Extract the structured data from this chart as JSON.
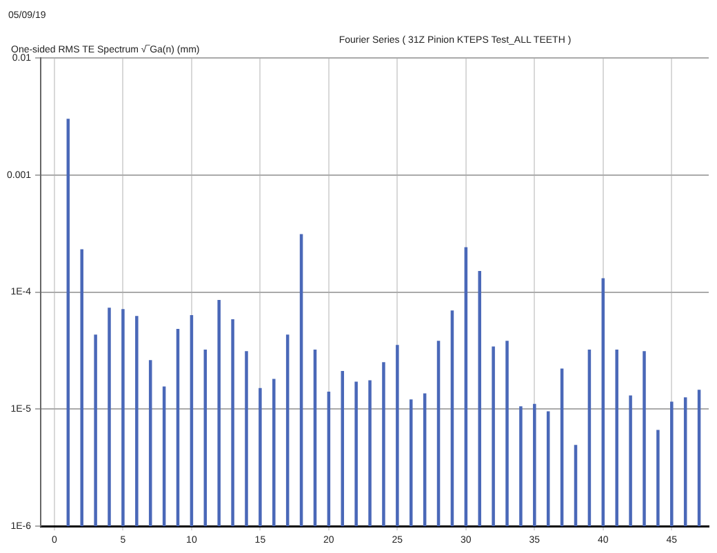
{
  "chart_data": {
    "type": "bar",
    "title": "Fourier Series ( 31Z Pinion KTEPS Test_ALL TEETH )",
    "ylabel": "One-sided RMS TE Spectrum √‾Ga(n) (mm)",
    "annotations": [
      "05/09/19"
    ],
    "x": [
      1,
      2,
      3,
      4,
      5,
      6,
      7,
      8,
      9,
      10,
      11,
      12,
      13,
      14,
      15,
      16,
      17,
      18,
      19,
      20,
      21,
      22,
      23,
      24,
      25,
      26,
      27,
      28,
      29,
      30,
      31,
      32,
      33,
      34,
      35,
      36,
      37,
      38,
      39,
      40,
      41,
      42,
      43,
      44,
      45,
      46,
      47
    ],
    "values": [
      0.003,
      0.00023,
      4.3e-05,
      7.3e-05,
      7.1e-05,
      6.2e-05,
      2.6e-05,
      1.55e-05,
      4.8e-05,
      6.3e-05,
      3.2e-05,
      8.5e-05,
      5.8e-05,
      3.1e-05,
      1.5e-05,
      1.8e-05,
      4.3e-05,
      0.00031,
      3.2e-05,
      1.4e-05,
      2.1e-05,
      1.7e-05,
      1.75e-05,
      2.5e-05,
      3.5e-05,
      1.2e-05,
      1.35e-05,
      3.8e-05,
      6.9e-05,
      0.00024,
      0.00015,
      3.4e-05,
      3.8e-05,
      1.05e-05,
      1.1e-05,
      9.5e-06,
      2.2e-05,
      4.9e-06,
      3.2e-05,
      0.00013,
      3.2e-05,
      1.3e-05,
      3.1e-05,
      6.6e-06,
      1.15e-05,
      1.25e-05,
      1.45e-05
    ],
    "color": "#4a68b8",
    "log": "y",
    "grid": true,
    "legend": false,
    "xlim": [
      -1,
      47.7
    ],
    "xticks": [
      0,
      5,
      10,
      15,
      20,
      25,
      30,
      35,
      40,
      45
    ],
    "ylim": [
      1e-06,
      0.01
    ],
    "yticks": [
      {
        "value": 1e-06,
        "label": "1E-6"
      },
      {
        "value": 1e-05,
        "label": "1E-5"
      },
      {
        "value": 0.0001,
        "label": "1E-4"
      },
      {
        "value": 0.001,
        "label": "0.001"
      },
      {
        "value": 0.01,
        "label": "0.01"
      }
    ]
  }
}
